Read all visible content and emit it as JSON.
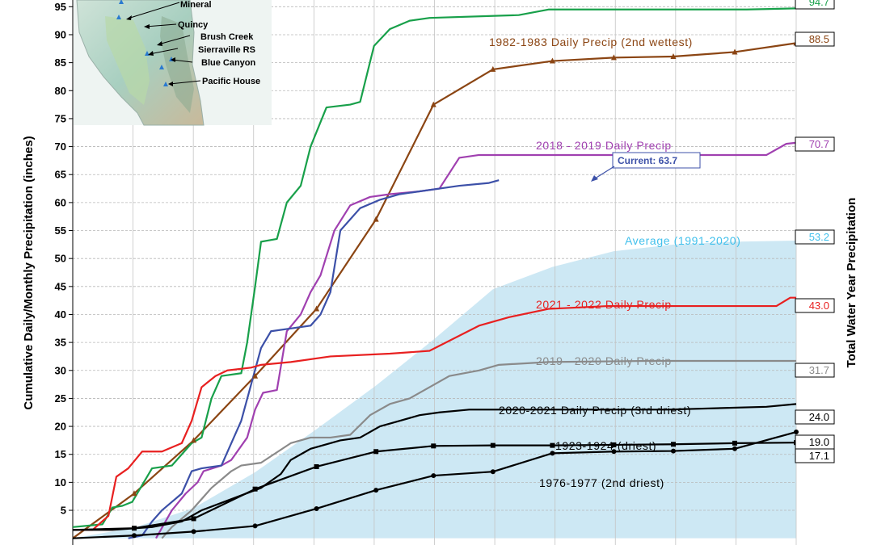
{
  "chart_data": {
    "type": "line",
    "ylabel": "Cumulative Daily/Monthly Precipitation (inches)",
    "right_label": "Total Water Year Precipitation",
    "y_ticks": [
      "5",
      "10",
      "15",
      "20",
      "25",
      "30",
      "35",
      "40",
      "45",
      "50",
      "55",
      "60",
      "65",
      "70",
      "75",
      "80",
      "85",
      "90",
      "95"
    ],
    "ylim": [
      -1.2,
      96.2
    ],
    "xlim": [
      0,
      365
    ],
    "grid": true,
    "legend": "labels inline on the right next to each series",
    "map_inset": {
      "stations": [
        "Mineral",
        "Quincy",
        "Brush Creek",
        "Sierraville RS",
        "Blue Canyon",
        "Pacific House"
      ]
    },
    "average": {
      "name": "Average (1991-2020)",
      "total": "53.2",
      "color": "#40c0ec",
      "fill": "#cde8f4",
      "points": [
        [
          0,
          0
        ],
        [
          31,
          1.9
        ],
        [
          61,
          5.4
        ],
        [
          92,
          11.8
        ],
        [
          123,
          19.5
        ],
        [
          153,
          27.3
        ],
        [
          182,
          35.5
        ],
        [
          212,
          44.5
        ],
        [
          242,
          48.5
        ],
        [
          273,
          51.3
        ],
        [
          303,
          52.5
        ],
        [
          334,
          53.0
        ],
        [
          365,
          53.2
        ]
      ]
    },
    "series": [
      {
        "name": "1982-1983 Daily Precip (2nd wettest)",
        "total": "88.5",
        "color": "#8b4513",
        "marker": "triangle",
        "points": [
          [
            0,
            0
          ],
          [
            31,
            8
          ],
          [
            61,
            17.5
          ],
          [
            92,
            29
          ],
          [
            123,
            41
          ],
          [
            153,
            57
          ],
          [
            182,
            77.5
          ],
          [
            212,
            83.8
          ],
          [
            242,
            85.3
          ],
          [
            273,
            85.9
          ],
          [
            303,
            86.1
          ],
          [
            334,
            86.9
          ],
          [
            365,
            88.5
          ]
        ]
      },
      {
        "name": "",
        "total": "94.7",
        "color": "#18a04a",
        "marker": "none",
        "points": [
          [
            0,
            2
          ],
          [
            15,
            2.5
          ],
          [
            20,
            5.5
          ],
          [
            25,
            5.8
          ],
          [
            30,
            6.5
          ],
          [
            40,
            12.5
          ],
          [
            50,
            13
          ],
          [
            55,
            15
          ],
          [
            60,
            17
          ],
          [
            65,
            18
          ],
          [
            70,
            25
          ],
          [
            75,
            29
          ],
          [
            85,
            29.5
          ],
          [
            88,
            35
          ],
          [
            92,
            45
          ],
          [
            95,
            53
          ],
          [
            103,
            53.5
          ],
          [
            108,
            60
          ],
          [
            115,
            63
          ],
          [
            120,
            70
          ],
          [
            128,
            77
          ],
          [
            140,
            77.5
          ],
          [
            145,
            78
          ],
          [
            152,
            88
          ],
          [
            160,
            91
          ],
          [
            170,
            92.5
          ],
          [
            180,
            93
          ],
          [
            225,
            93.5
          ],
          [
            240,
            94.5
          ],
          [
            340,
            94.5
          ],
          [
            365,
            94.7
          ]
        ]
      },
      {
        "name": "2018 - 2019 Daily Precip",
        "total": "70.7",
        "color": "#a040b0",
        "marker": "none",
        "points": [
          [
            42,
            0
          ],
          [
            50,
            5
          ],
          [
            57,
            8
          ],
          [
            63,
            10
          ],
          [
            66,
            12
          ],
          [
            75,
            13
          ],
          [
            80,
            14
          ],
          [
            88,
            18
          ],
          [
            92,
            23
          ],
          [
            96,
            26
          ],
          [
            103,
            26.5
          ],
          [
            108,
            37
          ],
          [
            115,
            40
          ],
          [
            120,
            44
          ],
          [
            125,
            47
          ],
          [
            132,
            55
          ],
          [
            140,
            59.5
          ],
          [
            150,
            61
          ],
          [
            160,
            61.5
          ],
          [
            175,
            62
          ],
          [
            185,
            62.5
          ],
          [
            195,
            68
          ],
          [
            205,
            68.5
          ],
          [
            240,
            68.5
          ],
          [
            350,
            68.5
          ],
          [
            360,
            70.5
          ],
          [
            365,
            70.7
          ]
        ]
      },
      {
        "name": "",
        "total": "",
        "color": "#3c50a8",
        "marker": "none",
        "points": [
          [
            28,
            0
          ],
          [
            35,
            0.5
          ],
          [
            40,
            3
          ],
          [
            45,
            5
          ],
          [
            55,
            8
          ],
          [
            60,
            12
          ],
          [
            65,
            12.5
          ],
          [
            75,
            13
          ],
          [
            85,
            21
          ],
          [
            95,
            34
          ],
          [
            100,
            37
          ],
          [
            110,
            37.5
          ],
          [
            120,
            38
          ],
          [
            125,
            40
          ],
          [
            130,
            44
          ],
          [
            135,
            55
          ],
          [
            145,
            59
          ],
          [
            155,
            60.5
          ],
          [
            165,
            61.5
          ],
          [
            175,
            62
          ],
          [
            185,
            62.5
          ],
          [
            195,
            63
          ],
          [
            210,
            63.5
          ],
          [
            215,
            64
          ]
        ]
      },
      {
        "name": "2021 - 2022 Daily Precip",
        "total": "43.0",
        "color": "#e82020",
        "marker": "none",
        "points": [
          [
            0,
            1.5
          ],
          [
            10,
            1.5
          ],
          [
            18,
            4
          ],
          [
            22,
            11
          ],
          [
            28,
            12.5
          ],
          [
            35,
            15.5
          ],
          [
            45,
            15.5
          ],
          [
            55,
            17
          ],
          [
            60,
            21
          ],
          [
            65,
            27
          ],
          [
            72,
            29
          ],
          [
            78,
            30
          ],
          [
            90,
            30.5
          ],
          [
            95,
            31
          ],
          [
            110,
            31.5
          ],
          [
            130,
            32.5
          ],
          [
            160,
            33
          ],
          [
            180,
            33.5
          ],
          [
            205,
            38
          ],
          [
            220,
            39.5
          ],
          [
            240,
            41
          ],
          [
            270,
            41.5
          ],
          [
            320,
            41.5
          ],
          [
            355,
            41.5
          ],
          [
            362,
            43
          ],
          [
            365,
            43.0
          ]
        ]
      },
      {
        "name": "2019 - 2020 Daily Precip",
        "total": "31.7",
        "color": "#8a8a8a",
        "marker": "none",
        "points": [
          [
            45,
            0
          ],
          [
            50,
            2
          ],
          [
            60,
            5
          ],
          [
            70,
            9
          ],
          [
            80,
            12
          ],
          [
            85,
            13
          ],
          [
            95,
            13.5
          ],
          [
            110,
            17
          ],
          [
            120,
            18
          ],
          [
            130,
            18
          ],
          [
            140,
            18.5
          ],
          [
            150,
            22
          ],
          [
            160,
            24
          ],
          [
            170,
            25
          ],
          [
            180,
            27
          ],
          [
            190,
            29
          ],
          [
            205,
            30
          ],
          [
            215,
            31
          ],
          [
            240,
            31.5
          ],
          [
            290,
            31.7
          ],
          [
            365,
            31.7
          ]
        ]
      },
      {
        "name": "2020-2021 Daily Precip (3rd driest)",
        "total": "24.0",
        "color": "#000000",
        "marker": "none",
        "points": [
          [
            0,
            1.5
          ],
          [
            20,
            1.5
          ],
          [
            40,
            2
          ],
          [
            55,
            3
          ],
          [
            65,
            5
          ],
          [
            80,
            7
          ],
          [
            95,
            9
          ],
          [
            105,
            11.5
          ],
          [
            110,
            14
          ],
          [
            120,
            16
          ],
          [
            135,
            17.5
          ],
          [
            145,
            18
          ],
          [
            155,
            20
          ],
          [
            165,
            21
          ],
          [
            175,
            22
          ],
          [
            185,
            22.5
          ],
          [
            200,
            23
          ],
          [
            240,
            23
          ],
          [
            300,
            23
          ],
          [
            350,
            23.5
          ],
          [
            365,
            24.0
          ]
        ]
      },
      {
        "name": "1923-1924 (driest)",
        "total": "17.1",
        "color": "#000000",
        "marker": "square",
        "points": [
          [
            0,
            1.5
          ],
          [
            31,
            1.8
          ],
          [
            61,
            3.5
          ],
          [
            92,
            8.8
          ],
          [
            123,
            12.8
          ],
          [
            153,
            15.5
          ],
          [
            182,
            16.5
          ],
          [
            212,
            16.6
          ],
          [
            242,
            16.6
          ],
          [
            273,
            16.7
          ],
          [
            303,
            16.8
          ],
          [
            334,
            17.0
          ],
          [
            365,
            17.1
          ]
        ]
      },
      {
        "name": "1976-1977 (2nd driest)",
        "total": "19.0",
        "color": "#000000",
        "marker": "dot",
        "points": [
          [
            0,
            0
          ],
          [
            31,
            0.5
          ],
          [
            61,
            1.2
          ],
          [
            92,
            2.2
          ],
          [
            123,
            5.3
          ],
          [
            153,
            8.6
          ],
          [
            182,
            11.2
          ],
          [
            212,
            11.9
          ],
          [
            242,
            15.2
          ],
          [
            273,
            15.5
          ],
          [
            303,
            15.6
          ],
          [
            334,
            16.0
          ],
          [
            365,
            19.0
          ]
        ]
      }
    ],
    "current": {
      "label": "Current: 63.7",
      "color": "#3c50a8"
    }
  }
}
